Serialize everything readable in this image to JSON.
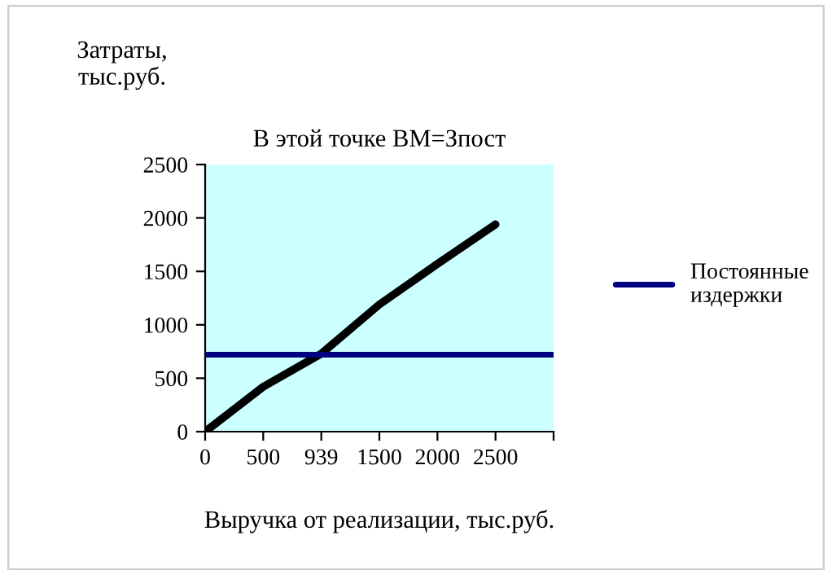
{
  "chart_data": {
    "type": "line",
    "title": "В этой точке ВМ=Зпост",
    "xlabel": "Выручка от реализации, тыс.руб.",
    "ylabel": "Затраты, тыс.руб.",
    "categories": [
      "0",
      "500",
      "939",
      "1500",
      "2000",
      "2500",
      null
    ],
    "series": [
      {
        "color": "#000000",
        "values": [
          0,
          420,
          730,
          1190,
          1570,
          1940,
          null
        ]
      },
      {
        "name": "Постоянные издержки",
        "color": "#000080",
        "values": [
          720,
          720,
          720,
          720,
          720,
          720,
          720
        ]
      }
    ],
    "ylim": [
      0,
      2500
    ],
    "yticks": [
      0,
      500,
      1000,
      1500,
      2000,
      2500
    ],
    "grid": false,
    "legend": "right",
    "marker": "none",
    "line_style": "solid"
  }
}
